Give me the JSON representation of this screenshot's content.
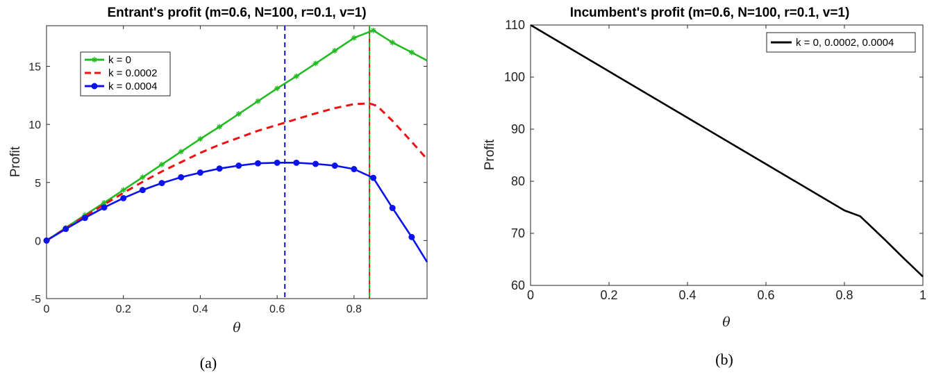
{
  "chart_data": [
    {
      "type": "line",
      "title": "Entrant's profit (m=0.6, N=100, r=0.1, v=1)",
      "xlabel": "θ",
      "ylabel": "Profit",
      "caption": "(a)",
      "xlim": [
        0,
        0.99
      ],
      "ylim": [
        -5,
        18.5
      ],
      "xticks": [
        0,
        0.2,
        0.4,
        0.6,
        0.8
      ],
      "yticks": [
        -5,
        0,
        5,
        10,
        15
      ],
      "xtick_labels": [
        "0",
        "0.2",
        "0.4",
        "0.6",
        "0.8"
      ],
      "ytick_labels": [
        "-5",
        "0",
        "5",
        "10",
        "15"
      ],
      "grid": false,
      "legend_position": "top-left",
      "colors": {
        "green": "#22bb22",
        "red": "#ee1111",
        "blue": "#0b12ee"
      },
      "vlines": [
        {
          "x": 0.62,
          "color": "#0b12ee",
          "style": "dashed"
        },
        {
          "x": 0.84,
          "color": "#ee1111",
          "style": "solid"
        },
        {
          "x": 0.84,
          "color": "#22bb22",
          "style": "dashed"
        }
      ],
      "series": [
        {
          "name": "k = 0",
          "color": "#22bb22",
          "style": "solid",
          "marker": "star",
          "x": [
            0,
            0.05,
            0.1,
            0.15,
            0.2,
            0.25,
            0.3,
            0.35,
            0.4,
            0.45,
            0.5,
            0.55,
            0.6,
            0.65,
            0.7,
            0.75,
            0.8,
            0.85,
            0.9,
            0.95,
            0.99
          ],
          "y": [
            0,
            1.1,
            2.2,
            3.25,
            4.35,
            5.45,
            6.55,
            7.65,
            8.75,
            9.8,
            10.9,
            12.0,
            13.1,
            14.15,
            15.25,
            16.35,
            17.45,
            18.1,
            17.05,
            16.2,
            15.5
          ]
        },
        {
          "name": "k = 0.0002",
          "color": "#ee1111",
          "style": "dashed",
          "marker": "none",
          "x": [
            0,
            0.05,
            0.1,
            0.15,
            0.2,
            0.25,
            0.3,
            0.35,
            0.4,
            0.45,
            0.5,
            0.55,
            0.6,
            0.65,
            0.7,
            0.75,
            0.8,
            0.84,
            0.86,
            0.9,
            0.95,
            0.99
          ],
          "y": [
            0,
            1.05,
            2.1,
            3.1,
            4.1,
            5.05,
            5.95,
            6.75,
            7.55,
            8.25,
            8.85,
            9.45,
            9.95,
            10.45,
            10.95,
            11.4,
            11.75,
            11.8,
            11.6,
            10.3,
            8.5,
            7.0
          ]
        },
        {
          "name": "k = 0.0004",
          "color": "#0b12ee",
          "style": "solid",
          "marker": "circle",
          "x": [
            0,
            0.05,
            0.1,
            0.15,
            0.2,
            0.25,
            0.3,
            0.35,
            0.4,
            0.45,
            0.5,
            0.55,
            0.6,
            0.65,
            0.7,
            0.75,
            0.8,
            0.85,
            0.9,
            0.95,
            0.99
          ],
          "y": [
            0,
            1.0,
            1.95,
            2.85,
            3.65,
            4.35,
            4.95,
            5.45,
            5.85,
            6.2,
            6.45,
            6.65,
            6.7,
            6.7,
            6.6,
            6.45,
            6.15,
            5.4,
            2.8,
            0.3,
            -1.85
          ]
        }
      ]
    },
    {
      "type": "line",
      "title": "Incumbent's profit (m=0.6, N=100, r=0.1, v=1)",
      "xlabel": "θ",
      "ylabel": "Profit",
      "caption": "(b)",
      "xlim": [
        0,
        1
      ],
      "ylim": [
        60,
        110
      ],
      "xticks": [
        0,
        0.2,
        0.4,
        0.6,
        0.8,
        1
      ],
      "yticks": [
        60,
        70,
        80,
        90,
        100,
        110
      ],
      "xtick_labels": [
        "0",
        "0.2",
        "0.4",
        "0.6",
        "0.8",
        "1"
      ],
      "ytick_labels": [
        "60",
        "70",
        "80",
        "90",
        "100",
        "110"
      ],
      "grid": false,
      "legend_position": "top-right",
      "series": [
        {
          "name": "k = 0, 0.0002, 0.0004",
          "color": "#000000",
          "style": "solid",
          "marker": "none",
          "x": [
            0,
            0.2,
            0.4,
            0.6,
            0.8,
            0.84,
            0.9,
            0.95,
            1.0
          ],
          "y": [
            110,
            101.1,
            92.2,
            83.3,
            74.4,
            73.3,
            69.0,
            65.3,
            61.7
          ]
        }
      ]
    }
  ]
}
